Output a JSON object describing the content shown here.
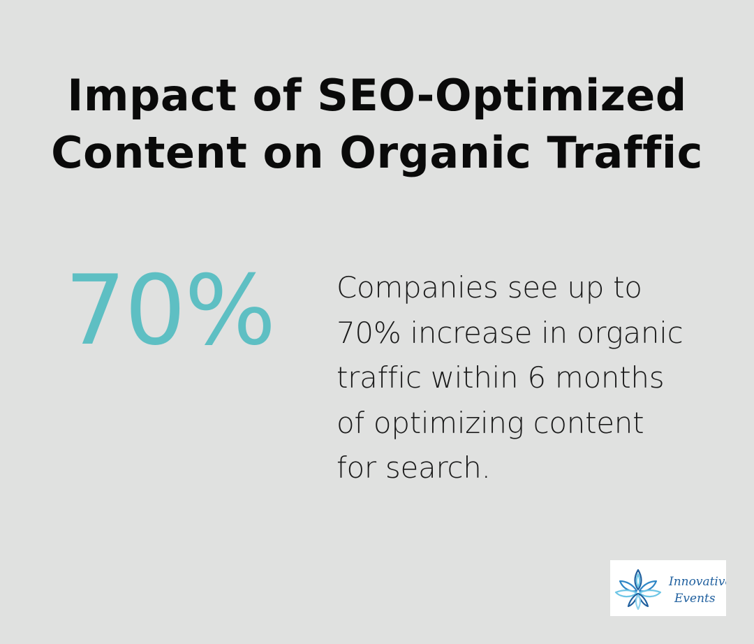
{
  "title": {
    "line1": "Impact of SEO-Optimized",
    "line2": "Content on Organic Traffic"
  },
  "stat": {
    "value": "70%"
  },
  "description": {
    "lines": [
      "Companies see up to",
      "70% increase in organic",
      "traffic within 6 months",
      "of optimizing content",
      "for search."
    ]
  },
  "logo": {
    "line1": "Innovative",
    "line2": "Events",
    "icon": "lotus-flower-icon"
  },
  "colors": {
    "background": "#e0e1e0",
    "accent": "#5ebfc3",
    "title": "#0a0a0a",
    "logo_blue_dark": "#1f5f9e",
    "logo_blue_light": "#6ec6e6"
  }
}
